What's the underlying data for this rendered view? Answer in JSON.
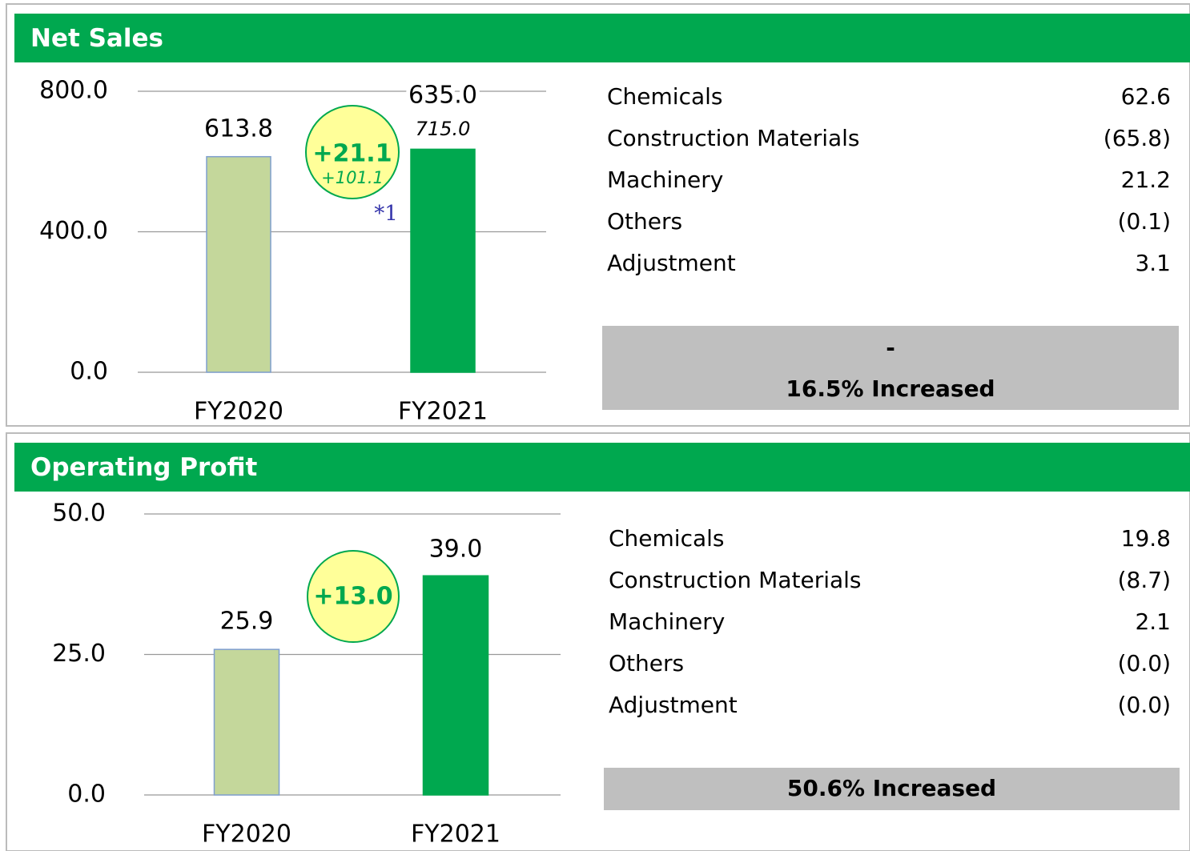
{
  "chart_data": [
    {
      "type": "bar",
      "title": "Net Sales",
      "categories": [
        "FY2020",
        "FY2021"
      ],
      "values": [
        613.8,
        635.0
      ],
      "value_labels": [
        "613.8",
        "635.0"
      ],
      "colors": [
        "#c4d79b",
        "#00a84f"
      ],
      "ylim": [
        0,
        800
      ],
      "yticks": [
        {
          "value": 0,
          "label": "0.0"
        },
        {
          "value": 400,
          "label": "400.0"
        },
        {
          "value": 800,
          "label": "800.0"
        }
      ],
      "grid": true,
      "annotations": [
        "+21.1",
        "+101.1",
        "715.0",
        "*1"
      ]
    },
    {
      "type": "bar",
      "title": "Operating Profit",
      "categories": [
        "FY2020",
        "FY2021"
      ],
      "values": [
        25.9,
        39.0
      ],
      "value_labels": [
        "25.9",
        "39.0"
      ],
      "colors": [
        "#c4d79b",
        "#00a84f"
      ],
      "ylim": [
        0,
        50
      ],
      "yticks": [
        {
          "value": 0,
          "label": "0.0"
        },
        {
          "value": 25,
          "label": "25.0"
        },
        {
          "value": 50,
          "label": "50.0"
        }
      ],
      "grid": true,
      "annotations": [
        "+13.0"
      ]
    }
  ],
  "breakdowns": [
    {
      "rows": [
        [
          "Chemicals",
          "62.6"
        ],
        [
          "Construction Materials",
          "(65.8)"
        ],
        [
          "Machinery",
          "21.2"
        ],
        [
          "Others",
          "(0.1)"
        ],
        [
          "Adjustment",
          "3.1"
        ]
      ],
      "summary": [
        "-",
        "16.5% Increased"
      ]
    },
    {
      "rows": [
        [
          "Chemicals",
          "19.8"
        ],
        [
          "Construction Materials",
          "(8.7)"
        ],
        [
          "Machinery",
          "2.1"
        ],
        [
          "Others",
          "(0.0)"
        ],
        [
          "Adjustment",
          "(0.0)"
        ]
      ],
      "summary": [
        "50.6% Increased"
      ]
    }
  ]
}
